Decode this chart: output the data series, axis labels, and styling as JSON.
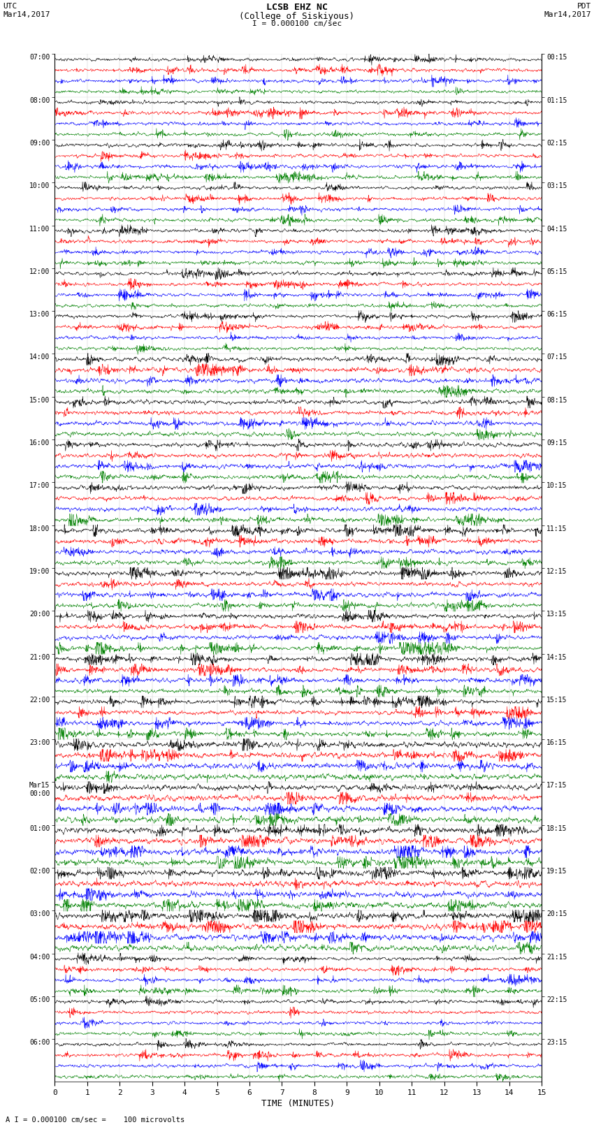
{
  "title_line1": "LCSB EHZ NC",
  "title_line2": "(College of Siskiyous)",
  "scale_label": "I = 0.000100 cm/sec",
  "footer_label": "A I = 0.000100 cm/sec =    100 microvolts",
  "xlabel": "TIME (MINUTES)",
  "bg_color": "#ffffff",
  "trace_colors": [
    "black",
    "red",
    "blue",
    "green"
  ],
  "num_hours": 24,
  "traces_per_hour": 4,
  "left_times": [
    "07:00",
    "08:00",
    "09:00",
    "10:00",
    "11:00",
    "12:00",
    "13:00",
    "14:00",
    "15:00",
    "16:00",
    "17:00",
    "18:00",
    "19:00",
    "20:00",
    "21:00",
    "22:00",
    "23:00",
    "Mar15\n00:00",
    "01:00",
    "02:00",
    "03:00",
    "04:00",
    "05:00",
    "06:00"
  ],
  "right_times": [
    "00:15",
    "01:15",
    "02:15",
    "03:15",
    "04:15",
    "05:15",
    "06:15",
    "07:15",
    "08:15",
    "09:15",
    "10:15",
    "11:15",
    "12:15",
    "13:15",
    "14:15",
    "15:15",
    "16:15",
    "17:15",
    "18:15",
    "19:15",
    "20:15",
    "21:15",
    "22:15",
    "23:15"
  ],
  "figsize": [
    8.5,
    16.13
  ],
  "dpi": 100
}
